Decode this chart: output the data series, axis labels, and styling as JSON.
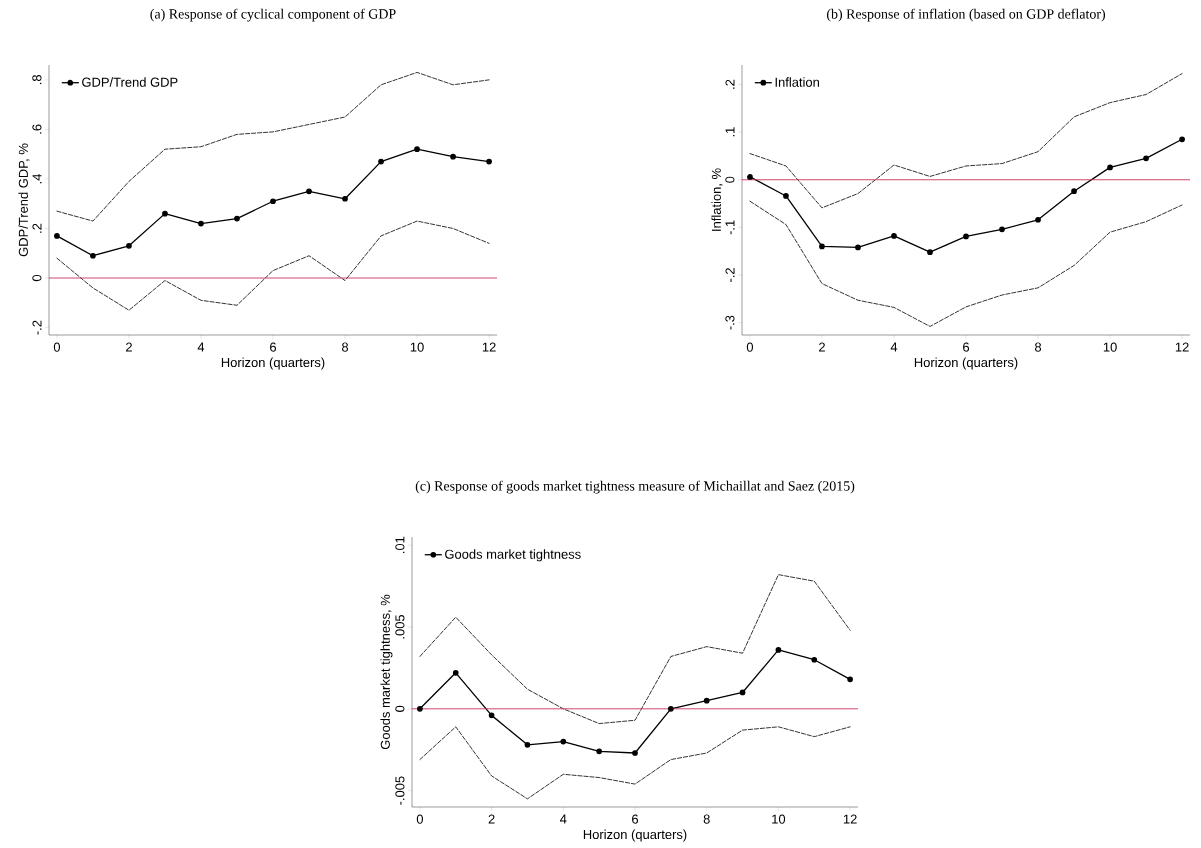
{
  "chart_data": [
    {
      "type": "line",
      "title": "(a) Response of cyclical component of GDP",
      "xlabel": "Horizon (quarters)",
      "ylabel": "GDP/Trend GDP, %",
      "x": [
        0,
        1,
        2,
        3,
        4,
        5,
        6,
        7,
        8,
        9,
        10,
        11,
        12
      ],
      "xlim": [
        -0.22,
        12.22
      ],
      "ylim": [
        -0.23,
        0.86
      ],
      "xticks": [
        0,
        2,
        4,
        6,
        8,
        10,
        12
      ],
      "yticks": [
        {
          "value": -0.2,
          "label": "-.2"
        },
        0,
        {
          "value": 0.2,
          "label": ".2"
        },
        {
          "value": 0.4,
          "label": ".4"
        },
        {
          "value": 0.6,
          "label": ".6"
        },
        {
          "value": 0.8,
          "label": ".8"
        }
      ],
      "legend": "top left",
      "series": [
        {
          "name": "GDP/Trend GDP",
          "color": "#000000",
          "marker": "circle",
          "line_style": "solid",
          "values": [
            0.17,
            0.09,
            0.13,
            0.26,
            0.22,
            0.24,
            0.31,
            0.35,
            0.32,
            0.47,
            0.52,
            0.49,
            0.47
          ]
        },
        {
          "color": "#000000",
          "marker": "none",
          "line_style": "dashed",
          "values": [
            0.27,
            0.23,
            0.39,
            0.52,
            0.53,
            0.58,
            0.59,
            0.62,
            0.65,
            0.78,
            0.83,
            0.78,
            0.8
          ]
        },
        {
          "color": "#000000",
          "marker": "none",
          "line_style": "dashed",
          "values": [
            0.08,
            -0.04,
            -0.13,
            -0.01,
            -0.09,
            -0.11,
            0.03,
            0.09,
            -0.01,
            0.17,
            0.23,
            0.2,
            0.14
          ]
        }
      ],
      "ref_lines": [
        {
          "axis": "y",
          "value": 0,
          "color": "#c8325a"
        }
      ]
    },
    {
      "type": "line",
      "title": "(b) Response of inflation (based on GDP deflator)",
      "xlabel": "Horizon (quarters)",
      "ylabel": "Inflation, %",
      "x": [
        0,
        1,
        2,
        3,
        4,
        5,
        6,
        7,
        8,
        9,
        10,
        11,
        12
      ],
      "xlim": [
        -0.22,
        12.22
      ],
      "ylim": [
        -0.326,
        0.241
      ],
      "xticks": [
        0,
        2,
        4,
        6,
        8,
        10,
        12
      ],
      "yticks": [
        {
          "value": -0.3,
          "label": "-.3"
        },
        {
          "value": -0.2,
          "label": "-.2"
        },
        {
          "value": -0.1,
          "label": "-.1"
        },
        0,
        {
          "value": 0.1,
          "label": ".1"
        },
        {
          "value": 0.2,
          "label": ".2"
        }
      ],
      "legend": "top left",
      "series": [
        {
          "name": "Inflation",
          "color": "#000000",
          "marker": "circle",
          "line_style": "solid",
          "values": [
            0.006,
            -0.034,
            -0.14,
            -0.142,
            -0.118,
            -0.152,
            -0.119,
            -0.104,
            -0.084,
            -0.024,
            0.026,
            0.045,
            0.085
          ]
        },
        {
          "color": "#000000",
          "marker": "none",
          "line_style": "dashed",
          "values": [
            0.055,
            0.029,
            -0.059,
            -0.029,
            0.031,
            0.007,
            0.029,
            0.034,
            0.059,
            0.132,
            0.162,
            0.179,
            0.223
          ]
        },
        {
          "color": "#000000",
          "marker": "none",
          "line_style": "dashed",
          "values": [
            -0.045,
            -0.094,
            -0.218,
            -0.253,
            -0.268,
            -0.308,
            -0.267,
            -0.242,
            -0.227,
            -0.18,
            -0.11,
            -0.088,
            -0.053
          ]
        }
      ],
      "ref_lines": [
        {
          "axis": "y",
          "value": 0,
          "color": "#c8325a"
        }
      ]
    },
    {
      "type": "line",
      "title": "(c) Response of goods market tightness measure of Michaillat and Saez (2015)",
      "xlabel": "Horizon (quarters)",
      "ylabel": "Goods market tightness, %",
      "x": [
        0,
        1,
        2,
        3,
        4,
        5,
        6,
        7,
        8,
        9,
        10,
        11,
        12
      ],
      "xlim": [
        -0.22,
        12.22
      ],
      "ylim": [
        -0.006,
        0.0105
      ],
      "xticks": [
        0,
        2,
        4,
        6,
        8,
        10,
        12
      ],
      "yticks": [
        {
          "value": -0.005,
          "label": "-.005"
        },
        0,
        {
          "value": 0.005,
          "label": ".005"
        },
        {
          "value": 0.01,
          "label": ".01"
        }
      ],
      "legend": "top left",
      "series": [
        {
          "name": "Goods market tightness",
          "color": "#000000",
          "marker": "circle",
          "line_style": "solid",
          "values": [
            0.0,
            0.0022,
            -0.0004,
            -0.0022,
            -0.002,
            -0.0026,
            -0.0027,
            0.0,
            0.0005,
            0.001,
            0.0036,
            0.003,
            0.0018
          ]
        },
        {
          "color": "#000000",
          "marker": "none",
          "line_style": "dashed",
          "values": [
            0.0032,
            0.0056,
            0.0033,
            0.0012,
            0.0,
            -0.0009,
            -0.0007,
            0.0032,
            0.0038,
            0.0034,
            0.0082,
            0.0078,
            0.0048
          ]
        },
        {
          "color": "#000000",
          "marker": "none",
          "line_style": "dashed",
          "values": [
            -0.0031,
            -0.0011,
            -0.0041,
            -0.0055,
            -0.004,
            -0.0042,
            -0.0046,
            -0.0031,
            -0.0027,
            -0.0013,
            -0.0011,
            -0.0017,
            -0.0011
          ]
        }
      ],
      "ref_lines": [
        {
          "axis": "y",
          "value": 0,
          "color": "#c8325a"
        }
      ]
    }
  ]
}
